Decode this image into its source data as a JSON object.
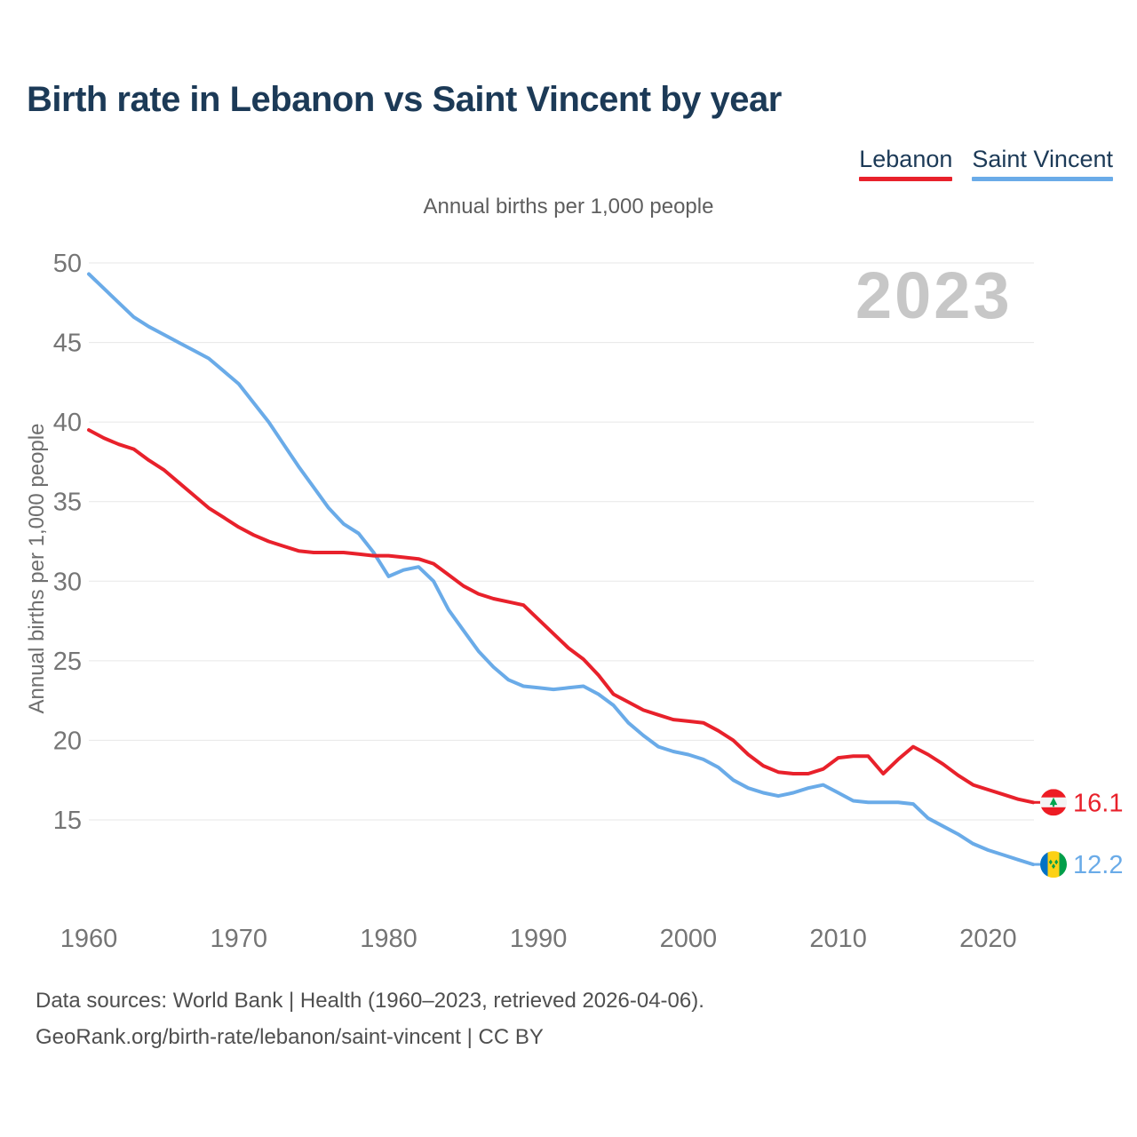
{
  "header": {
    "title": "Birth rate in Lebanon vs Saint Vincent by year",
    "legend": [
      {
        "label": "Lebanon",
        "color": "#e8212b"
      },
      {
        "label": "Saint Vincent",
        "color": "#6aabe8"
      }
    ]
  },
  "subtitle": "Annual births per 1,000 people",
  "watermark": "2023",
  "chart_data": {
    "type": "line",
    "title": "Annual births per 1,000 people",
    "ylabel": "Annual births per 1,000 people",
    "xlabel": "",
    "x_ticks": [
      1960,
      1970,
      1980,
      1990,
      2000,
      2010,
      2020
    ],
    "y_ticks": [
      15,
      20,
      25,
      30,
      35,
      40,
      45,
      50
    ],
    "ylim": [
      11.5,
      51
    ],
    "xlim": [
      1960,
      2023
    ],
    "grid": "horizontal",
    "legend_position": "top-right",
    "x": [
      1960,
      1961,
      1962,
      1963,
      1964,
      1965,
      1966,
      1967,
      1968,
      1969,
      1970,
      1971,
      1972,
      1973,
      1974,
      1975,
      1976,
      1977,
      1978,
      1979,
      1980,
      1981,
      1982,
      1983,
      1984,
      1985,
      1986,
      1987,
      1988,
      1989,
      1990,
      1991,
      1992,
      1993,
      1994,
      1995,
      1996,
      1997,
      1998,
      1999,
      2000,
      2001,
      2002,
      2003,
      2004,
      2005,
      2006,
      2007,
      2008,
      2009,
      2010,
      2011,
      2012,
      2013,
      2014,
      2015,
      2016,
      2017,
      2018,
      2019,
      2020,
      2021,
      2022,
      2023
    ],
    "series": [
      {
        "name": "Lebanon",
        "color": "#e8212b",
        "end_label": "16.1",
        "flag": "lebanon",
        "values": [
          39.5,
          39.0,
          38.6,
          38.3,
          37.6,
          37.0,
          36.2,
          35.4,
          34.6,
          34.0,
          33.4,
          32.9,
          32.5,
          32.2,
          31.9,
          31.8,
          31.8,
          31.8,
          31.7,
          31.6,
          31.6,
          31.5,
          31.4,
          31.1,
          30.4,
          29.7,
          29.2,
          28.9,
          28.7,
          28.5,
          27.6,
          26.7,
          25.8,
          25.1,
          24.1,
          22.9,
          22.4,
          21.9,
          21.6,
          21.3,
          21.2,
          21.1,
          20.6,
          20.0,
          19.1,
          18.4,
          18.0,
          17.9,
          17.9,
          18.2,
          18.9,
          19.0,
          19.0,
          17.9,
          18.8,
          19.6,
          19.1,
          18.5,
          17.8,
          17.2,
          16.9,
          16.6,
          16.3,
          16.1
        ]
      },
      {
        "name": "Saint Vincent",
        "color": "#6aabe8",
        "end_label": "12.2",
        "flag": "saint-vincent",
        "values": [
          49.3,
          48.4,
          47.5,
          46.6,
          46.0,
          45.5,
          45.0,
          44.5,
          44.0,
          43.2,
          42.4,
          41.2,
          40.0,
          38.6,
          37.2,
          35.9,
          34.6,
          33.6,
          33.0,
          31.8,
          30.3,
          30.7,
          30.9,
          30.0,
          28.2,
          26.9,
          25.6,
          24.6,
          23.8,
          23.4,
          23.3,
          23.2,
          23.3,
          23.4,
          22.9,
          22.2,
          21.1,
          20.3,
          19.6,
          19.3,
          19.1,
          18.8,
          18.3,
          17.5,
          17.0,
          16.7,
          16.5,
          16.7,
          17.0,
          17.2,
          16.7,
          16.2,
          16.1,
          16.1,
          16.1,
          16.0,
          15.1,
          14.6,
          14.1,
          13.5,
          13.1,
          12.8,
          12.5,
          12.2
        ]
      }
    ]
  },
  "footer": {
    "line1": "Data sources: World Bank | Health (1960–2023, retrieved 2026-04-06).",
    "line2": "GeoRank.org/birth-rate/lebanon/saint-vincent | CC BY"
  }
}
